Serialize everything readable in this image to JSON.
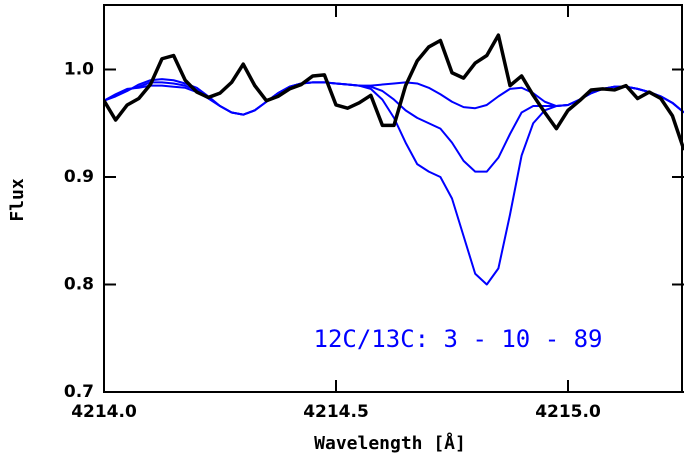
{
  "chart_data": {
    "type": "line",
    "xlabel": "Wavelength [Å]",
    "ylabel": "Flux",
    "annotation": "12C/13C: 3 - 10 - 89",
    "annotation_color": "#0000ff",
    "xlim": [
      4214.0,
      4215.25
    ],
    "ylim": [
      0.7,
      1.06
    ],
    "xticks": [
      {
        "value": 4214,
        "label": "4214.0"
      },
      4214.5,
      {
        "value": 4215,
        "label": "4215.0"
      }
    ],
    "yticks": [
      0.7,
      0.8,
      0.9,
      {
        "value": 1,
        "label": "1.0"
      }
    ],
    "x": [
      4214.0,
      4214.025,
      4214.05,
      4214.075,
      4214.1,
      4214.125,
      4214.15,
      4214.175,
      4214.2,
      4214.225,
      4214.25,
      4214.275,
      4214.3,
      4214.325,
      4214.35,
      4214.375,
      4214.4,
      4214.425,
      4214.45,
      4214.475,
      4214.5,
      4214.525,
      4214.55,
      4214.575,
      4214.6,
      4214.625,
      4214.65,
      4214.675,
      4214.7,
      4214.725,
      4214.75,
      4214.775,
      4214.8,
      4214.825,
      4214.85,
      4214.875,
      4214.9,
      4214.925,
      4214.95,
      4214.975,
      4215.0,
      4215.025,
      4215.05,
      4215.075,
      4215.1,
      4215.125,
      4215.15,
      4215.175,
      4215.2,
      4215.225,
      4215.25
    ],
    "series": [
      {
        "color": "#0000ff",
        "width": 2,
        "values": [
          0.971,
          0.975,
          0.98,
          0.986,
          0.99,
          0.991,
          0.99,
          0.987,
          0.983,
          0.975,
          0.966,
          0.96,
          0.958,
          0.962,
          0.97,
          0.978,
          0.984,
          0.987,
          0.988,
          0.988,
          0.987,
          0.986,
          0.985,
          0.985,
          0.986,
          0.987,
          0.988,
          0.987,
          0.983,
          0.977,
          0.97,
          0.965,
          0.964,
          0.967,
          0.975,
          0.982,
          0.983,
          0.978,
          0.97,
          0.966,
          0.967,
          0.972,
          0.978,
          0.982,
          0.984,
          0.984,
          0.982,
          0.979,
          0.975,
          0.969,
          0.96
        ]
      },
      {
        "color": "#0000ff",
        "width": 2,
        "values": [
          0.971,
          0.976,
          0.981,
          0.984,
          0.988,
          0.988,
          0.987,
          0.985,
          0.981,
          0.974,
          0.966,
          0.96,
          0.958,
          0.962,
          0.97,
          0.978,
          0.984,
          0.987,
          0.988,
          0.988,
          0.987,
          0.986,
          0.985,
          0.984,
          0.98,
          0.972,
          0.962,
          0.955,
          0.95,
          0.945,
          0.932,
          0.915,
          0.905,
          0.905,
          0.918,
          0.94,
          0.96,
          0.966,
          0.966,
          0.966,
          0.967,
          0.972,
          0.978,
          0.982,
          0.984,
          0.984,
          0.982,
          0.979,
          0.975,
          0.969,
          0.96
        ]
      },
      {
        "color": "#0000ff",
        "width": 2,
        "values": [
          0.971,
          0.977,
          0.982,
          0.983,
          0.985,
          0.985,
          0.984,
          0.983,
          0.979,
          0.973,
          0.966,
          0.96,
          0.958,
          0.962,
          0.97,
          0.978,
          0.984,
          0.987,
          0.988,
          0.988,
          0.987,
          0.986,
          0.985,
          0.982,
          0.972,
          0.955,
          0.932,
          0.912,
          0.905,
          0.9,
          0.88,
          0.845,
          0.81,
          0.8,
          0.815,
          0.865,
          0.92,
          0.95,
          0.962,
          0.966,
          0.967,
          0.972,
          0.978,
          0.982,
          0.984,
          0.984,
          0.982,
          0.979,
          0.975,
          0.969,
          0.96
        ]
      },
      {
        "color": "#000000",
        "width": 3.5,
        "values": [
          0.971,
          0.953,
          0.967,
          0.973,
          0.986,
          1.01,
          1.013,
          0.99,
          0.979,
          0.974,
          0.978,
          0.988,
          1.005,
          0.985,
          0.971,
          0.975,
          0.982,
          0.986,
          0.994,
          0.995,
          0.967,
          0.964,
          0.969,
          0.976,
          0.948,
          0.948,
          0.985,
          1.008,
          1.021,
          1.027,
          0.997,
          0.992,
          1.006,
          1.013,
          1.032,
          0.985,
          0.994,
          0.976,
          0.96,
          0.945,
          0.962,
          0.971,
          0.981,
          0.982,
          0.981,
          0.985,
          0.973,
          0.979,
          0.973,
          0.957,
          0.925
        ]
      }
    ]
  }
}
